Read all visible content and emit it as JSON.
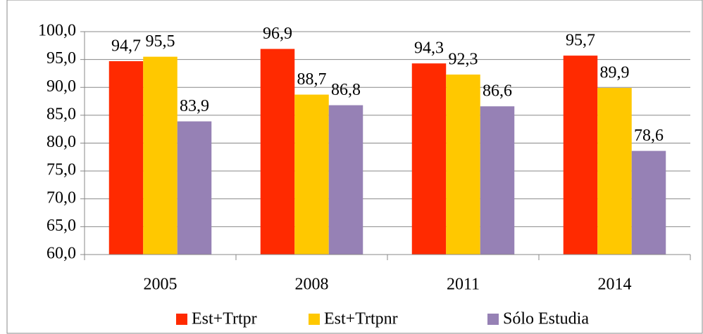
{
  "chart_data": {
    "type": "bar",
    "categories": [
      "2005",
      "2008",
      "2011",
      "2014"
    ],
    "series": [
      {
        "name": "Est+Trtpr",
        "color": "#ff2a00",
        "values": [
          94.7,
          96.9,
          94.3,
          95.7
        ],
        "value_labels": [
          "94,7",
          "96,9",
          "94,3",
          "95,7"
        ]
      },
      {
        "name": "Est+Trtpnr",
        "color": "#ffc800",
        "values": [
          95.5,
          88.7,
          92.3,
          89.9
        ],
        "value_labels": [
          "95,5",
          "88,7",
          "92,3",
          "89,9"
        ]
      },
      {
        "name": "Sólo Estudia",
        "color": "#9681b5",
        "values": [
          83.9,
          86.8,
          86.6,
          78.6
        ],
        "value_labels": [
          "83,9",
          "86,8",
          "86,6",
          "78,6"
        ]
      }
    ],
    "ylim": [
      60,
      100
    ],
    "yticks": [
      {
        "value": 60,
        "label": "60,0"
      },
      {
        "value": 65,
        "label": "65,0"
      },
      {
        "value": 70,
        "label": "70,0"
      },
      {
        "value": 75,
        "label": "75,0"
      },
      {
        "value": 80,
        "label": "80,0"
      },
      {
        "value": 85,
        "label": "85,0"
      },
      {
        "value": 90,
        "label": "90,0"
      },
      {
        "value": 95,
        "label": "95,0"
      },
      {
        "value": 100,
        "label": "100,0"
      }
    ],
    "grid": true,
    "legend": "bottom"
  }
}
